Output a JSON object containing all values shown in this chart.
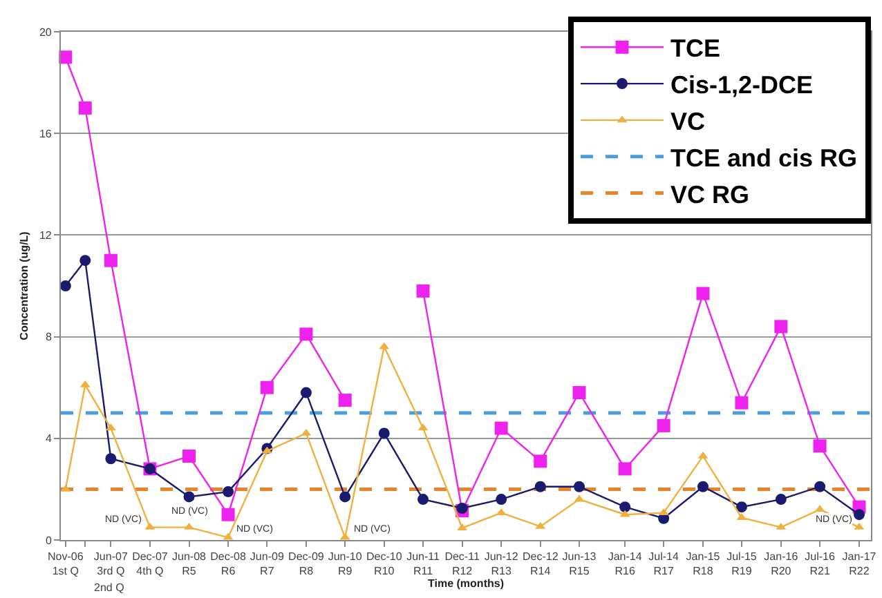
{
  "chart_data": {
    "type": "line",
    "xlabel": "Time (months)",
    "ylabel": "Concentration (ug/L)",
    "x": [
      "2006-11",
      "2007-02",
      "2007-06",
      "2007-12",
      "2008-06",
      "2008-12",
      "2009-06",
      "2009-12",
      "2010-06",
      "2010-12",
      "2011-06",
      "2011-12",
      "2012-06",
      "2012-12",
      "2013-06",
      "2014-01",
      "2014-07",
      "2015-01",
      "2015-07",
      "2016-01",
      "2016-07",
      "2017-01"
    ],
    "series": [
      {
        "name": "TCE",
        "color": "#ee22ee",
        "marker": "square",
        "values": [
          19.0,
          17.0,
          11.0,
          2.8,
          3.3,
          1.0,
          6.0,
          8.1,
          5.5,
          null,
          9.8,
          1.15,
          4.4,
          3.1,
          5.8,
          2.8,
          4.5,
          9.7,
          5.4,
          8.4,
          3.7,
          1.3
        ]
      },
      {
        "name": "Cis-1,2-DCE",
        "color": "#1a1a6e",
        "marker": "circle",
        "values": [
          10.0,
          11.0,
          3.2,
          2.8,
          1.7,
          1.9,
          3.6,
          5.8,
          1.7,
          4.2,
          1.6,
          1.25,
          1.6,
          2.1,
          2.1,
          1.3,
          0.85,
          2.1,
          1.3,
          1.6,
          2.1,
          1.0
        ]
      },
      {
        "name": "VC",
        "color": "#f0b040",
        "marker": "triangle",
        "values": [
          2.0,
          6.1,
          4.4,
          0.5,
          0.5,
          0.1,
          3.5,
          4.2,
          0.1,
          7.6,
          4.4,
          0.47,
          1.07,
          0.53,
          1.6,
          1.0,
          1.07,
          3.3,
          0.88,
          0.5,
          1.2,
          0.5
        ]
      }
    ],
    "ref_lines": [
      {
        "axis": "y",
        "value": 5,
        "label": "TCE and cis RG",
        "color": "#4a9fd8",
        "line_style": "dashed"
      },
      {
        "axis": "y",
        "value": 2,
        "label": "VC RG",
        "color": "#e8842a",
        "line_style": "dashed"
      }
    ],
    "annotations": [
      {
        "text": "ND (VC)",
        "x": "2007-12",
        "y": 0.5
      },
      {
        "text": "ND (VC)",
        "x": "2008-06",
        "y": 0.5
      },
      {
        "text": "ND (VC)",
        "x": "2008-12",
        "y": 0.1
      },
      {
        "text": "ND (VC)",
        "x": "2010-06",
        "y": 0.1
      },
      {
        "text": "ND (VC)",
        "x": "2017-01",
        "y": 0.5
      },
      "2nd Q"
    ],
    "xlim": [
      "2006-10-10",
      "2017-02-25"
    ],
    "xticks": [
      {
        "value": "2006-11",
        "label": "Nov-06\n1st Q"
      },
      {
        "value": "2007-02",
        "label": null
      },
      {
        "value": "2007-06",
        "label": "Jun-07\n3rd Q"
      },
      {
        "value": "2007-12",
        "label": "Dec-07\n4th Q"
      },
      {
        "value": "2008-06",
        "label": "Jun-08\nR5"
      },
      {
        "value": "2008-12",
        "label": "Dec-08\nR6"
      },
      {
        "value": "2009-06",
        "label": "Jun-09\nR7"
      },
      {
        "value": "2009-12",
        "label": "Dec-09\nR8"
      },
      {
        "value": "2010-06",
        "label": "Jun-10\nR9"
      },
      {
        "value": "2010-12",
        "label": "Dec-10\nR10"
      },
      {
        "value": "2011-06",
        "label": "Jun-11\nR11"
      },
      {
        "value": "2011-12",
        "label": "Dec-11\nR12"
      },
      {
        "value": "2012-06",
        "label": "Jun-12\nR13"
      },
      {
        "value": "2012-12",
        "label": "Dec-12\nR14"
      },
      {
        "value": "2013-06",
        "label": "Jun-13\nR15"
      },
      {
        "value": "2014-01",
        "label": "Jan-14\nR16"
      },
      {
        "value": "2014-07",
        "label": "Jul-14\nR17"
      },
      {
        "value": "2015-01",
        "label": "Jan-15\nR18"
      },
      {
        "value": "2015-07",
        "label": "Jul-15\nR19"
      },
      {
        "value": "2016-01",
        "label": "Jan-16\nR20"
      },
      {
        "value": "2016-07",
        "label": "Jul-16\nR21"
      },
      {
        "value": "2017-01",
        "label": "Jan-17\nR22"
      }
    ],
    "ylim": [
      0,
      20
    ],
    "yticks": [
      0,
      4,
      8,
      12,
      16,
      20
    ],
    "grid": "y",
    "legend": "top right"
  }
}
